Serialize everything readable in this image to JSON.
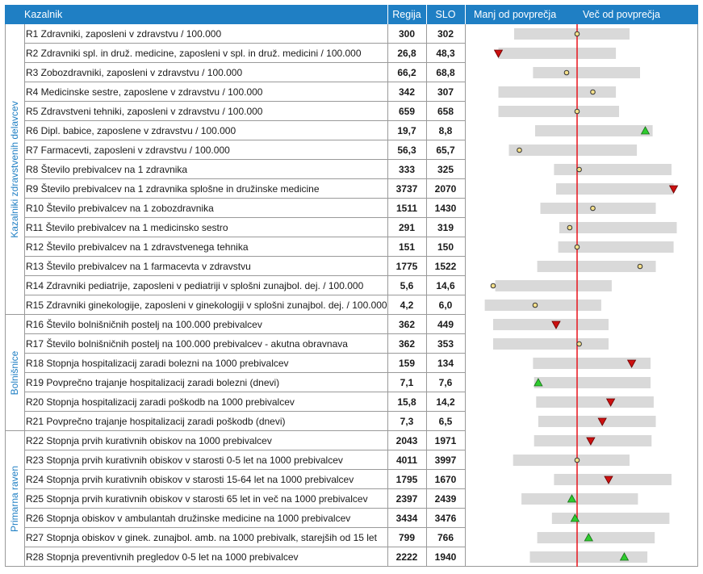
{
  "header": {
    "indicator": "Kazalnik",
    "region": "Regija",
    "slo": "SLO",
    "below": "Manj od povprečja",
    "above": "Več od povprečja"
  },
  "groups": [
    {
      "label": "Kazalniki zdravstvenih delavcev",
      "start": 0,
      "end": 14
    },
    {
      "label": "Bolnišnice",
      "start": 15,
      "end": 20
    },
    {
      "label": "Primarna raven",
      "start": 21,
      "end": 27
    }
  ],
  "colors": {
    "header": "#1f7fc4",
    "range": "#d9d9d9",
    "avg_line": "#e8141c",
    "better": "#2ecc2e",
    "worse": "#cc1010",
    "neutral": "#f5e08a"
  },
  "chart_data": {
    "type": "table",
    "columns": [
      "Kazalnik",
      "Regija",
      "SLO"
    ],
    "rows": [
      {
        "name": "R1 Zdravniki, zaposleni v zdravstvu / 100.000",
        "region": "300",
        "slo": "302",
        "marker": "neutral",
        "range": [
          -0.6,
          0.5
        ],
        "pos": 0.0
      },
      {
        "name": "R2 Zdravniki spl. in druž. medicine, zaposleni v spl. in druž. medicini / 100.000",
        "region": "26,8",
        "slo": "48,3",
        "marker": "worse",
        "range": [
          -0.75,
          0.37
        ],
        "pos": -0.75
      },
      {
        "name": "R3 Zobozdravniki, zaposleni v zdravstvu / 100.000",
        "region": "66,2",
        "slo": "68,8",
        "marker": "neutral",
        "range": [
          -0.42,
          0.6
        ],
        "pos": -0.1
      },
      {
        "name": "R4 Medicinske sestre, zaposlene v zdravstvu / 100.000",
        "region": "342",
        "slo": "307",
        "marker": "neutral",
        "range": [
          -0.75,
          0.37
        ],
        "pos": 0.15
      },
      {
        "name": "R5 Zdravstveni tehniki, zaposleni v zdravstvu / 100.000",
        "region": "659",
        "slo": "658",
        "marker": "neutral",
        "range": [
          -0.75,
          0.4
        ],
        "pos": 0.0
      },
      {
        "name": "R6 Dipl. babice, zaposlene v zdravstvu / 100.000",
        "region": "19,7",
        "slo": "8,8",
        "marker": "better",
        "range": [
          -0.4,
          0.72
        ],
        "pos": 0.65
      },
      {
        "name": "R7 Farmacevti, zaposleni v zdravstvu / 100.000",
        "region": "56,3",
        "slo": "65,7",
        "marker": "neutral",
        "range": [
          -0.65,
          0.57
        ],
        "pos": -0.55
      },
      {
        "name": "R8 Število prebivalcev na 1 zdravnika",
        "region": "333",
        "slo": "325",
        "marker": "neutral",
        "range": [
          -0.22,
          0.9
        ],
        "pos": 0.02
      },
      {
        "name": "R9 Število prebivalcev na 1 zdravnika splošne in družinske medicine",
        "region": "3737",
        "slo": "2070",
        "marker": "worse",
        "range": [
          -0.2,
          0.92
        ],
        "pos": 0.92
      },
      {
        "name": "R10 Število prebivalcev na 1 zobozdravnika",
        "region": "1511",
        "slo": "1430",
        "marker": "neutral",
        "range": [
          -0.35,
          0.75
        ],
        "pos": 0.15
      },
      {
        "name": "R11 Število prebivalcev na 1 medicinsko sestro",
        "region": "291",
        "slo": "319",
        "marker": "neutral",
        "range": [
          -0.17,
          0.95
        ],
        "pos": -0.07
      },
      {
        "name": "R12 Število prebivalcev na 1 zdravstvenega tehnika",
        "region": "151",
        "slo": "150",
        "marker": "neutral",
        "range": [
          -0.18,
          0.92
        ],
        "pos": 0.0
      },
      {
        "name": "R13 Število prebivalcev na 1 farmacevta v zdravstvu",
        "region": "1775",
        "slo": "1522",
        "marker": "neutral",
        "range": [
          -0.38,
          0.75
        ],
        "pos": 0.6
      },
      {
        "name": "R14 Zdravniki pediatrije, zaposleni v pediatriji v splošni zunajbol. dej. / 100.000",
        "region": "5,6",
        "slo": "14,6",
        "marker": "neutral",
        "range": [
          -0.78,
          0.33
        ],
        "pos": -0.8
      },
      {
        "name": "R15 Zdravniki ginekologije, zaposleni v ginekologiji v splošni zunajbol. dej. / 100.000",
        "region": "4,2",
        "slo": "6,0",
        "marker": "neutral",
        "range": [
          -0.88,
          0.23
        ],
        "pos": -0.4
      },
      {
        "name": "R16 Število bolnišničnih postelj na 100.000 prebivalcev",
        "region": "362",
        "slo": "449",
        "marker": "worse",
        "range": [
          -0.8,
          0.3
        ],
        "pos": -0.2
      },
      {
        "name": "R17 Število bolnišničnih postelj na 100.000 prebivalcev - akutna obravnava",
        "region": "362",
        "slo": "353",
        "marker": "neutral",
        "range": [
          -0.8,
          0.3
        ],
        "pos": 0.02
      },
      {
        "name": "R18 Stopnja hospitalizacij zaradi bolezni na 1000 prebivalcev",
        "region": "159",
        "slo": "134",
        "marker": "worse",
        "range": [
          -0.42,
          0.7
        ],
        "pos": 0.52
      },
      {
        "name": "R19 Povprečno trajanje hospitalizacij zaradi bolezni (dnevi)",
        "region": "7,1",
        "slo": "7,6",
        "marker": "better",
        "range": [
          -0.41,
          0.7
        ],
        "pos": -0.37
      },
      {
        "name": "R20 Stopnja hospitalizacij zaradi poškodb na 1000 prebivalcev",
        "region": "15,8",
        "slo": "14,2",
        "marker": "worse",
        "range": [
          -0.39,
          0.73
        ],
        "pos": 0.32
      },
      {
        "name": "R21 Povprečno trajanje hospitalizacij zaradi poškodb (dnevi)",
        "region": "7,3",
        "slo": "6,5",
        "marker": "worse",
        "range": [
          -0.37,
          0.75
        ],
        "pos": 0.24
      },
      {
        "name": "R22 Stopnja prvih kurativnih obiskov na 1000 prebivalcev",
        "region": "2043",
        "slo": "1971",
        "marker": "worse",
        "range": [
          -0.41,
          0.71
        ],
        "pos": 0.13
      },
      {
        "name": "R23 Stopnja prvih kurativnih obiskov v starosti 0-5 let na 1000 prebivalcev",
        "region": "4011",
        "slo": "3997",
        "marker": "neutral",
        "range": [
          -0.61,
          0.5
        ],
        "pos": 0.0
      },
      {
        "name": "R24 Stopnja prvih kurativnih obiskov v starosti 15-64 let na 1000 prebivalcev",
        "region": "1795",
        "slo": "1670",
        "marker": "worse",
        "range": [
          -0.22,
          0.9
        ],
        "pos": 0.3
      },
      {
        "name": "R25 Stopnja prvih kurativnih obiskov v starosti 65 let in več na 1000 prebivalcev",
        "region": "2397",
        "slo": "2439",
        "marker": "better",
        "range": [
          -0.53,
          0.58
        ],
        "pos": -0.05
      },
      {
        "name": "R26 Stopnja obiskov v ambulantah družinske medicine na 1000 prebivalcev",
        "region": "3434",
        "slo": "3476",
        "marker": "better",
        "range": [
          -0.24,
          0.88
        ],
        "pos": -0.02
      },
      {
        "name": "R27 Stopnja obiskov v ginek. zunajbol. amb. na 1000 prebivalk, starejših od 15 let",
        "region": "799",
        "slo": "766",
        "marker": "better",
        "range": [
          -0.38,
          0.74
        ],
        "pos": 0.11
      },
      {
        "name": "R28 Stopnja preventivnih pregledov 0-5 let na 1000 prebivalcev",
        "region": "2222",
        "slo": "1940",
        "marker": "better",
        "range": [
          -0.45,
          0.67
        ],
        "pos": 0.45
      }
    ]
  }
}
